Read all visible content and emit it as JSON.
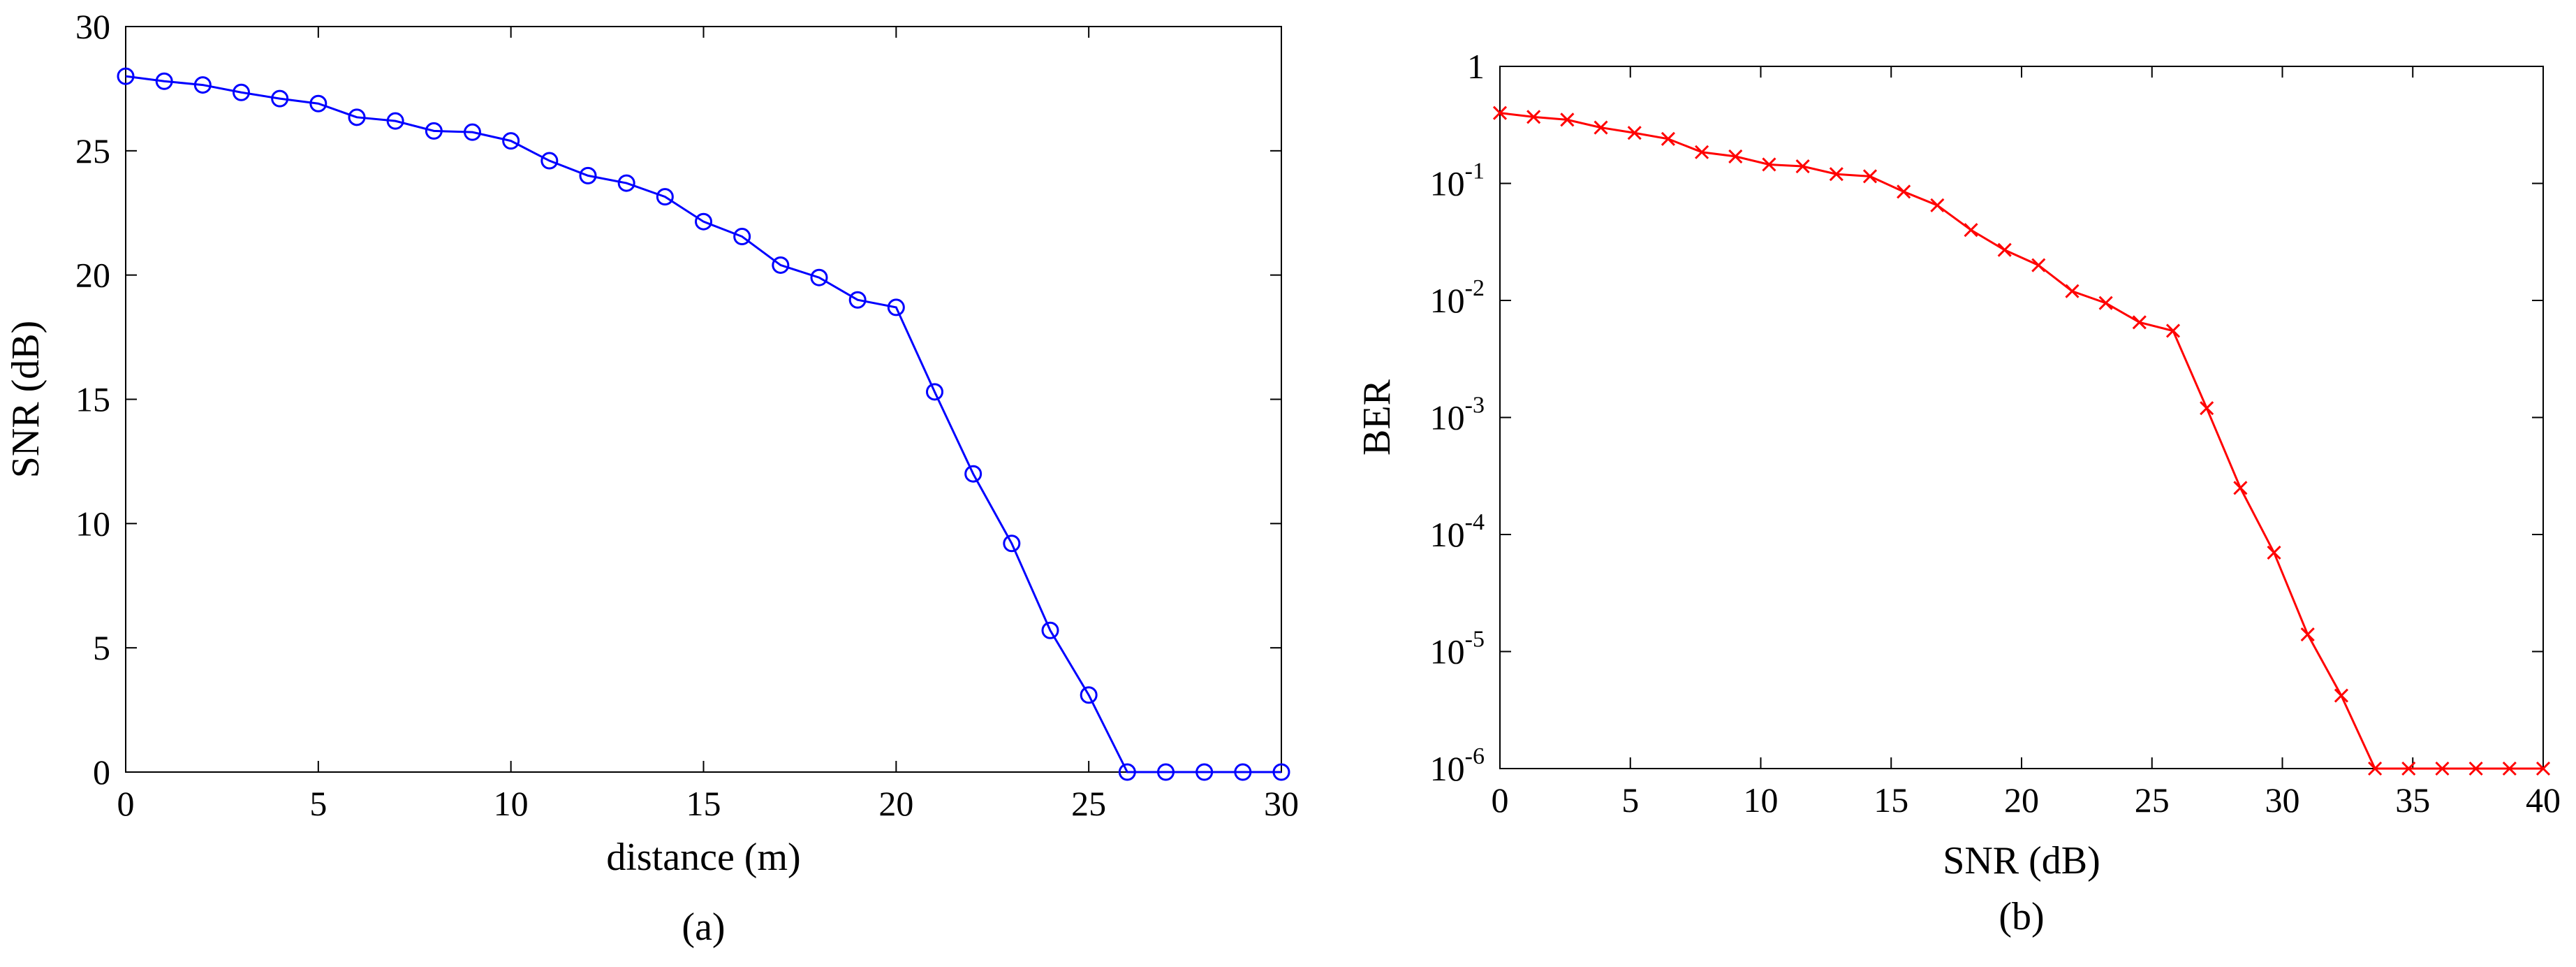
{
  "chart_data": [
    {
      "type": "line",
      "caption": "(a)",
      "title": "",
      "xlabel": "distance (m)",
      "ylabel": "SNR (dB)",
      "xlim": [
        0,
        30
      ],
      "ylim": [
        0,
        30
      ],
      "xticks": [
        0,
        5,
        10,
        15,
        20,
        25,
        30
      ],
      "yticks": [
        0,
        5,
        10,
        15,
        20,
        25,
        30
      ],
      "xscale": "linear",
      "yscale": "linear",
      "grid": false,
      "legend": "none",
      "series": [
        {
          "color": "#0000ff",
          "marker": "circle",
          "x": [
            0,
            1,
            2,
            3,
            4,
            5,
            6,
            7,
            8,
            9,
            10,
            11,
            12,
            13,
            14,
            15,
            16,
            17,
            18,
            19,
            20,
            21,
            22,
            23,
            24,
            25,
            26,
            27,
            28,
            29,
            30
          ],
          "y": [
            28.0,
            27.8,
            27.65,
            27.35,
            27.1,
            26.9,
            26.35,
            26.2,
            25.8,
            25.75,
            25.4,
            24.6,
            24.0,
            23.7,
            23.15,
            22.15,
            21.55,
            20.4,
            19.9,
            19.0,
            18.7,
            15.3,
            12.0,
            9.2,
            5.7,
            3.1,
            0,
            0,
            0,
            0,
            0
          ]
        }
      ]
    },
    {
      "type": "line",
      "caption": "(b)",
      "title": "",
      "xlabel": "SNR (dB)",
      "ylabel": "BER",
      "xlim": [
        0,
        40
      ],
      "ylim": [
        1e-06,
        1
      ],
      "xticks": [
        0,
        5,
        10,
        15,
        20,
        25,
        30,
        35,
        40
      ],
      "yticks": [
        {
          "base": "1",
          "exp": ""
        },
        {
          "base": "10",
          "exp": "-1"
        },
        {
          "base": "10",
          "exp": "-2"
        },
        {
          "base": "10",
          "exp": "-3"
        },
        {
          "base": "10",
          "exp": "-4"
        },
        {
          "base": "10",
          "exp": "-5"
        },
        {
          "base": "10",
          "exp": "-6"
        }
      ],
      "xscale": "linear",
      "yscale": "log",
      "grid": false,
      "legend": "none",
      "series": [
        {
          "color": "#ff0000",
          "marker": "x",
          "x": [
            0,
            1.29,
            2.58,
            3.87,
            5.16,
            6.45,
            7.74,
            9.03,
            10.32,
            11.61,
            12.9,
            14.19,
            15.48,
            16.77,
            18.06,
            19.35,
            20.65,
            21.94,
            23.23,
            24.52,
            25.81,
            27.1,
            28.39,
            29.68,
            30.97,
            32.26,
            33.55,
            34.84,
            36.13,
            37.42,
            38.71,
            40.0
          ],
          "y": [
            0.4,
            0.37,
            0.35,
            0.3,
            0.27,
            0.24,
            0.185,
            0.17,
            0.145,
            0.14,
            0.12,
            0.115,
            0.085,
            0.065,
            0.04,
            0.027,
            0.02,
            0.012,
            0.0095,
            0.0065,
            0.0055,
            0.0012,
            0.00025,
            7e-05,
            1.4e-05,
            4.2e-06,
            1e-06,
            1e-06,
            1e-06,
            1e-06,
            1e-06,
            1e-06
          ]
        }
      ]
    }
  ]
}
